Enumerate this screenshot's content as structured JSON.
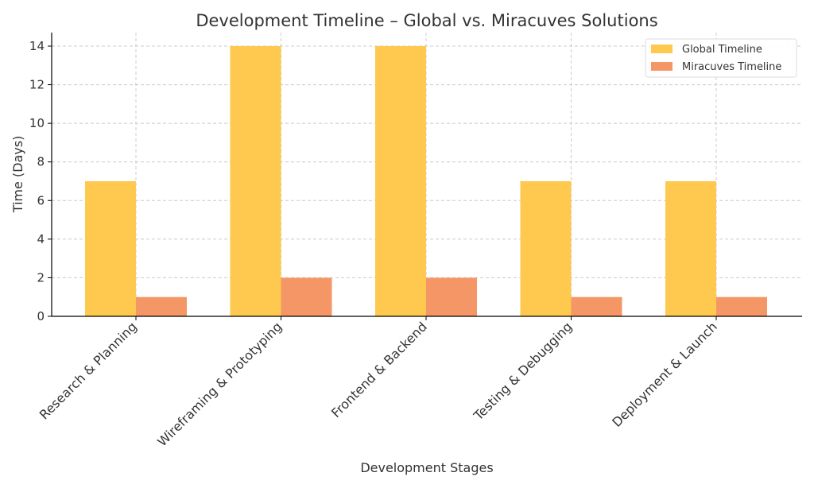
{
  "chart_data": {
    "type": "bar",
    "title": "Development Timeline – Global vs. Miracuves Solutions",
    "xlabel": "Development Stages",
    "ylabel": "Time (Days)",
    "ylim": [
      0,
      14.7
    ],
    "yticks": [
      0,
      2,
      4,
      6,
      8,
      10,
      12,
      14
    ],
    "grid": true,
    "legend_position": "top-right",
    "categories": [
      "Research & Planning",
      "Wireframing & Prototyping",
      "Frontend & Backend",
      "Testing & Debugging",
      "Deployment & Launch"
    ],
    "series": [
      {
        "name": "Global Timeline",
        "color": "#FFC84F",
        "values": [
          7,
          14,
          14,
          7,
          7
        ]
      },
      {
        "name": "Miracuves Timeline",
        "color": "#F59666",
        "values": [
          1,
          2,
          2,
          1,
          1
        ]
      }
    ]
  }
}
